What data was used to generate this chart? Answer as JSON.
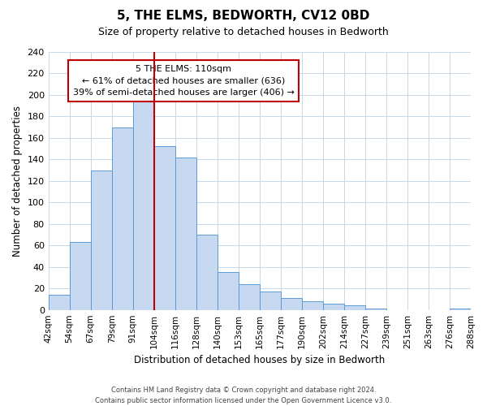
{
  "title": "5, THE ELMS, BEDWORTH, CV12 0BD",
  "subtitle": "Size of property relative to detached houses in Bedworth",
  "xlabel": "Distribution of detached houses by size in Bedworth",
  "ylabel": "Number of detached properties",
  "bin_edges": [
    "42sqm",
    "54sqm",
    "67sqm",
    "79sqm",
    "91sqm",
    "104sqm",
    "116sqm",
    "128sqm",
    "140sqm",
    "153sqm",
    "165sqm",
    "177sqm",
    "190sqm",
    "202sqm",
    "214sqm",
    "227sqm",
    "239sqm",
    "251sqm",
    "263sqm",
    "276sqm",
    "288sqm"
  ],
  "bar_heights": [
    14,
    63,
    130,
    170,
    198,
    152,
    142,
    70,
    35,
    24,
    17,
    11,
    8,
    6,
    4,
    1,
    0,
    0,
    0,
    1
  ],
  "bar_color": "#c6d9f0",
  "bar_edge_color": "#5b9bd5",
  "marker_after_bar_index": 5,
  "marker_line_color": "#c00000",
  "ylim": [
    0,
    240
  ],
  "yticks": [
    0,
    20,
    40,
    60,
    80,
    100,
    120,
    140,
    160,
    180,
    200,
    220,
    240
  ],
  "annotation_title": "5 THE ELMS: 110sqm",
  "annotation_line1": "← 61% of detached houses are smaller (636)",
  "annotation_line2": "39% of semi-detached houses are larger (406) →",
  "annotation_box_color": "#ffffff",
  "annotation_box_edge": "#c00000",
  "footer_line1": "Contains HM Land Registry data © Crown copyright and database right 2024.",
  "footer_line2": "Contains public sector information licensed under the Open Government Licence v3.0.",
  "background_color": "#ffffff",
  "grid_color": "#c8d8e8"
}
